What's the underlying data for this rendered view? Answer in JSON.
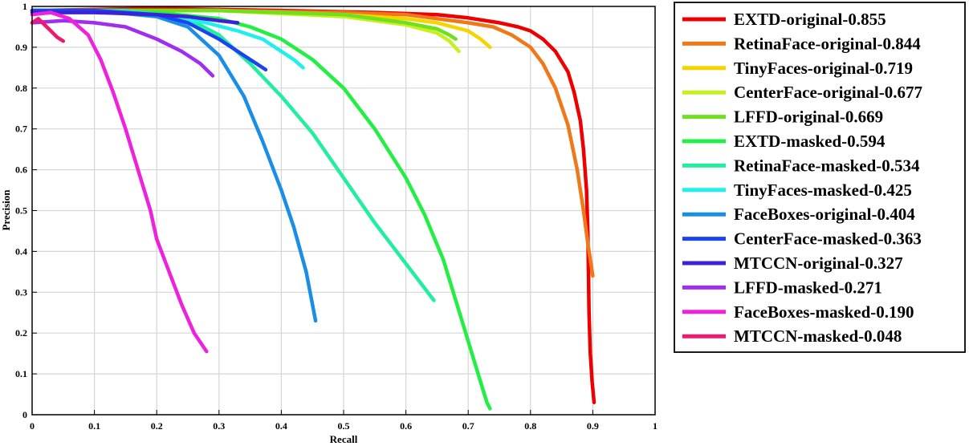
{
  "chart_data": {
    "type": "line",
    "xlabel": "Recall",
    "ylabel": "Precision",
    "xlim": [
      0,
      1
    ],
    "ylim": [
      0,
      1
    ],
    "grid": true,
    "legend_position": "outside-right",
    "x_ticks": [
      "0",
      "0.1",
      "0.2",
      "0.3",
      "0.4",
      "0.5",
      "0.6",
      "0.7",
      "0.8",
      "0.9",
      "1"
    ],
    "y_ticks": [
      "0",
      "0.1",
      "0.2",
      "0.3",
      "0.4",
      "0.5",
      "0.6",
      "0.7",
      "0.8",
      "0.9",
      "1"
    ],
    "series": [
      {
        "name": "EXTD-original-0.855",
        "color": "#ee0000",
        "points": [
          [
            0.0,
            0.99
          ],
          [
            0.2,
            0.995
          ],
          [
            0.4,
            0.99
          ],
          [
            0.55,
            0.985
          ],
          [
            0.65,
            0.98
          ],
          [
            0.7,
            0.972
          ],
          [
            0.75,
            0.96
          ],
          [
            0.78,
            0.95
          ],
          [
            0.8,
            0.94
          ],
          [
            0.82,
            0.92
          ],
          [
            0.84,
            0.89
          ],
          [
            0.86,
            0.84
          ],
          [
            0.87,
            0.79
          ],
          [
            0.88,
            0.72
          ],
          [
            0.885,
            0.65
          ],
          [
            0.89,
            0.55
          ],
          [
            0.892,
            0.45
          ],
          [
            0.893,
            0.35
          ],
          [
            0.894,
            0.25
          ],
          [
            0.896,
            0.15
          ],
          [
            0.899,
            0.08
          ],
          [
            0.902,
            0.03
          ]
        ]
      },
      {
        "name": "RetinaFace-original-0.844",
        "color": "#f07818",
        "points": [
          [
            0.0,
            0.99
          ],
          [
            0.3,
            0.99
          ],
          [
            0.5,
            0.985
          ],
          [
            0.6,
            0.98
          ],
          [
            0.65,
            0.97
          ],
          [
            0.7,
            0.96
          ],
          [
            0.74,
            0.95
          ],
          [
            0.77,
            0.93
          ],
          [
            0.8,
            0.9
          ],
          [
            0.82,
            0.86
          ],
          [
            0.84,
            0.8
          ],
          [
            0.86,
            0.71
          ],
          [
            0.875,
            0.6
          ],
          [
            0.885,
            0.5
          ],
          [
            0.892,
            0.42
          ],
          [
            0.9,
            0.34
          ]
        ]
      },
      {
        "name": "TinyFaces-original-0.719",
        "color": "#f5d400",
        "points": [
          [
            0.0,
            0.99
          ],
          [
            0.3,
            0.99
          ],
          [
            0.5,
            0.98
          ],
          [
            0.6,
            0.97
          ],
          [
            0.65,
            0.96
          ],
          [
            0.7,
            0.94
          ],
          [
            0.72,
            0.92
          ],
          [
            0.735,
            0.9
          ]
        ]
      },
      {
        "name": "CenterFace-original-0.677",
        "color": "#c8f020",
        "points": [
          [
            0.0,
            0.99
          ],
          [
            0.3,
            0.99
          ],
          [
            0.5,
            0.975
          ],
          [
            0.6,
            0.955
          ],
          [
            0.65,
            0.935
          ],
          [
            0.67,
            0.915
          ],
          [
            0.685,
            0.89
          ]
        ]
      },
      {
        "name": "LFFD-original-0.669",
        "color": "#6ee020",
        "points": [
          [
            0.0,
            0.99
          ],
          [
            0.3,
            0.99
          ],
          [
            0.5,
            0.98
          ],
          [
            0.6,
            0.96
          ],
          [
            0.65,
            0.945
          ],
          [
            0.67,
            0.93
          ],
          [
            0.68,
            0.92
          ]
        ]
      },
      {
        "name": "EXTD-masked-0.594",
        "color": "#22ee44",
        "points": [
          [
            0.0,
            0.99
          ],
          [
            0.2,
            0.985
          ],
          [
            0.3,
            0.97
          ],
          [
            0.35,
            0.95
          ],
          [
            0.4,
            0.92
          ],
          [
            0.45,
            0.87
          ],
          [
            0.5,
            0.8
          ],
          [
            0.55,
            0.7
          ],
          [
            0.6,
            0.58
          ],
          [
            0.63,
            0.49
          ],
          [
            0.66,
            0.38
          ],
          [
            0.68,
            0.28
          ],
          [
            0.7,
            0.18
          ],
          [
            0.72,
            0.08
          ],
          [
            0.73,
            0.03
          ],
          [
            0.735,
            0.015
          ]
        ]
      },
      {
        "name": "RetinaFace-masked-0.534",
        "color": "#22eea0",
        "points": [
          [
            0.0,
            0.99
          ],
          [
            0.15,
            0.99
          ],
          [
            0.25,
            0.97
          ],
          [
            0.3,
            0.93
          ],
          [
            0.35,
            0.86
          ],
          [
            0.4,
            0.78
          ],
          [
            0.45,
            0.69
          ],
          [
            0.5,
            0.58
          ],
          [
            0.55,
            0.47
          ],
          [
            0.6,
            0.37
          ],
          [
            0.62,
            0.33
          ],
          [
            0.645,
            0.28
          ]
        ]
      },
      {
        "name": "TinyFaces-masked-0.425",
        "color": "#22eeee",
        "points": [
          [
            0.0,
            0.99
          ],
          [
            0.1,
            0.99
          ],
          [
            0.2,
            0.98
          ],
          [
            0.28,
            0.96
          ],
          [
            0.33,
            0.94
          ],
          [
            0.37,
            0.92
          ],
          [
            0.4,
            0.89
          ],
          [
            0.42,
            0.87
          ],
          [
            0.435,
            0.85
          ]
        ]
      },
      {
        "name": "FaceBoxes-original-0.404",
        "color": "#1a8ee6",
        "points": [
          [
            0.0,
            0.99
          ],
          [
            0.1,
            0.99
          ],
          [
            0.2,
            0.975
          ],
          [
            0.25,
            0.95
          ],
          [
            0.3,
            0.88
          ],
          [
            0.34,
            0.78
          ],
          [
            0.37,
            0.67
          ],
          [
            0.4,
            0.55
          ],
          [
            0.42,
            0.46
          ],
          [
            0.44,
            0.35
          ],
          [
            0.455,
            0.23
          ]
        ]
      },
      {
        "name": "CenterFace-masked-0.363",
        "color": "#1a44f0",
        "points": [
          [
            0.0,
            0.99
          ],
          [
            0.1,
            0.99
          ],
          [
            0.2,
            0.98
          ],
          [
            0.25,
            0.96
          ],
          [
            0.3,
            0.92
          ],
          [
            0.34,
            0.88
          ],
          [
            0.375,
            0.845
          ]
        ]
      },
      {
        "name": "MTCCN-original-0.327",
        "color": "#3a22d8",
        "points": [
          [
            0.0,
            0.985
          ],
          [
            0.1,
            0.985
          ],
          [
            0.2,
            0.98
          ],
          [
            0.25,
            0.975
          ],
          [
            0.3,
            0.965
          ],
          [
            0.33,
            0.96
          ]
        ]
      },
      {
        "name": "LFFD-masked-0.271",
        "color": "#a02ef0",
        "points": [
          [
            0.0,
            0.96
          ],
          [
            0.05,
            0.965
          ],
          [
            0.1,
            0.96
          ],
          [
            0.15,
            0.95
          ],
          [
            0.2,
            0.92
          ],
          [
            0.24,
            0.89
          ],
          [
            0.27,
            0.86
          ],
          [
            0.29,
            0.83
          ]
        ]
      },
      {
        "name": "FaceBoxes-masked-0.190",
        "color": "#ee22dd",
        "points": [
          [
            0.0,
            0.98
          ],
          [
            0.03,
            0.985
          ],
          [
            0.06,
            0.97
          ],
          [
            0.09,
            0.93
          ],
          [
            0.11,
            0.87
          ],
          [
            0.13,
            0.79
          ],
          [
            0.15,
            0.7
          ],
          [
            0.17,
            0.6
          ],
          [
            0.19,
            0.5
          ],
          [
            0.2,
            0.43
          ],
          [
            0.22,
            0.35
          ],
          [
            0.24,
            0.27
          ],
          [
            0.26,
            0.2
          ],
          [
            0.28,
            0.155
          ]
        ]
      },
      {
        "name": "MTCCN-masked-0.048",
        "color": "#ee1a6e",
        "points": [
          [
            0.0,
            0.96
          ],
          [
            0.01,
            0.97
          ],
          [
            0.02,
            0.955
          ],
          [
            0.03,
            0.94
          ],
          [
            0.04,
            0.925
          ],
          [
            0.05,
            0.915
          ]
        ]
      }
    ]
  }
}
